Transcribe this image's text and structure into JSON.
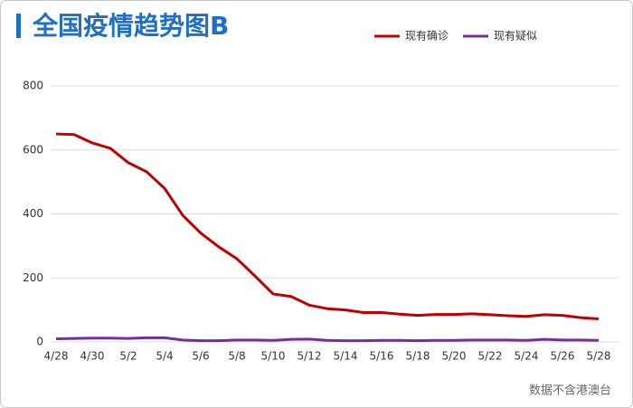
{
  "chart_data": {
    "type": "line",
    "title": "全国疫情趋势图B",
    "note": "数据不含港澳台",
    "categories": [
      "4/28",
      null,
      "4/30",
      null,
      "5/2",
      null,
      "5/4",
      null,
      "5/6",
      null,
      "5/8",
      null,
      "5/10",
      null,
      "5/12",
      null,
      "5/14",
      null,
      "5/16",
      null,
      "5/18",
      null,
      "5/20",
      null,
      "5/22",
      null,
      "5/24",
      null,
      "5/26",
      null,
      "5/28"
    ],
    "series": [
      {
        "name": "现有确诊",
        "color": "#c00000",
        "values": [
          650,
          648,
          622,
          605,
          560,
          532,
          480,
          396,
          340,
          297,
          260,
          206,
          150,
          142,
          115,
          104,
          100,
          92,
          92,
          87,
          83,
          86,
          86,
          88,
          85,
          82,
          80,
          85,
          83,
          76,
          72
        ]
      },
      {
        "name": "现有疑似",
        "color": "#7030a0",
        "values": [
          10,
          11,
          12,
          12,
          11,
          13,
          13,
          6,
          4,
          4,
          6,
          6,
          5,
          8,
          9,
          5,
          4,
          4,
          5,
          5,
          4,
          5,
          5,
          6,
          6,
          6,
          5,
          8,
          6,
          6,
          5
        ]
      }
    ],
    "ylim": [
      0,
      800
    ],
    "yticks": [
      0,
      200,
      400,
      600,
      800
    ],
    "grid": true,
    "legend": "upper-right"
  }
}
